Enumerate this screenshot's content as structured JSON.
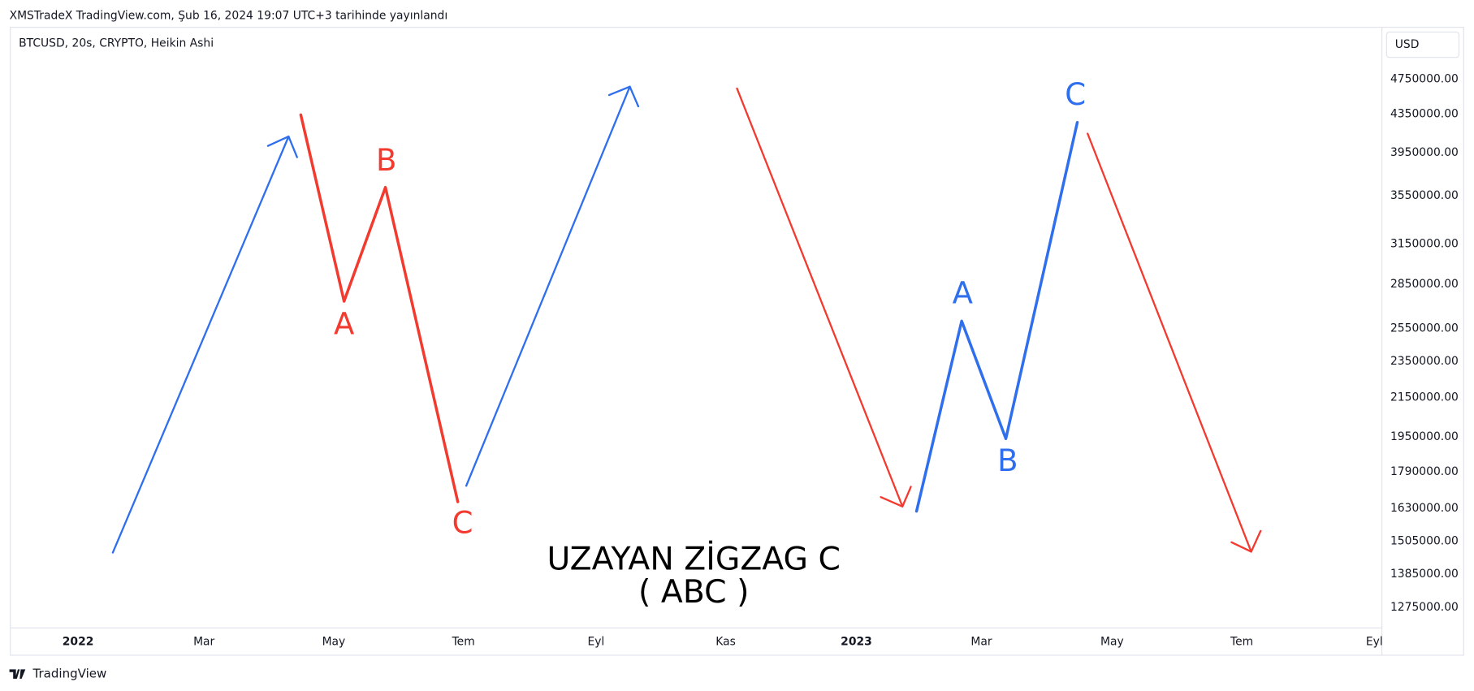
{
  "header": {
    "title": "XMSTradeX TradingView.com, Şub 16, 2024 19:07 UTC+3 tarihinde yayınlandı"
  },
  "chart": {
    "symbol_info": "BTCUSD, 20s, CRYPTO, Heikin Ashi",
    "currency": "USD",
    "price_labels": [
      "4750000.00",
      "4350000.00",
      "3950000.00",
      "3550000.00",
      "3150000.00",
      "2850000.00",
      "2550000.00",
      "2350000.00",
      "2150000.00",
      "1950000.00",
      "1790000.00",
      "1630000.00",
      "1505000.00",
      "1385000.00",
      "1275000.00"
    ],
    "time_labels": [
      "2022",
      "Mar",
      "May",
      "Tem",
      "Eyl",
      "Kas",
      "2023",
      "Mar",
      "May",
      "Tem",
      "Eyl"
    ],
    "red_wave_labels": [
      "A",
      "B",
      "C"
    ],
    "blue_wave_labels": [
      "A",
      "B",
      "C"
    ],
    "caption": [
      "UZAYAN ZİGZAG C",
      "( ABC )"
    ]
  },
  "footer": {
    "brand": "TradingView"
  }
}
